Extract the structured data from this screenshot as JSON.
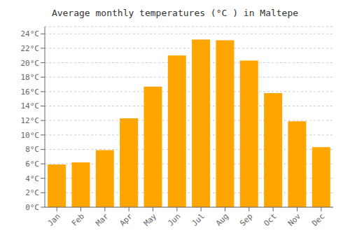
{
  "chart_data": {
    "type": "bar",
    "title": "Average monthly temperatures (°C ) in Maltepe",
    "categories": [
      "Jan",
      "Feb",
      "Mar",
      "Apr",
      "May",
      "Jun",
      "Jul",
      "Aug",
      "Sep",
      "Oct",
      "Nov",
      "Dec"
    ],
    "values": [
      5.9,
      6.2,
      7.9,
      12.3,
      16.7,
      21.0,
      23.2,
      23.1,
      20.3,
      15.8,
      11.9,
      8.3
    ],
    "color": "#FFA500",
    "ylim": [
      0,
      25
    ],
    "yticks": [
      {
        "value": 0,
        "label": "0°C"
      },
      {
        "value": 2,
        "label": "2°C"
      },
      {
        "value": 4,
        "label": "4°C"
      },
      {
        "value": 6,
        "label": "6°C"
      },
      {
        "value": 8,
        "label": "8°C"
      },
      {
        "value": 10,
        "label": "10°C"
      },
      {
        "value": 12,
        "label": "12°C"
      },
      {
        "value": 14,
        "label": "14°C"
      },
      {
        "value": 16,
        "label": "16°C"
      },
      {
        "value": 18,
        "label": "18°C"
      },
      {
        "value": 20,
        "label": "20°C"
      },
      {
        "value": 22,
        "label": "22°C"
      },
      {
        "value": 24,
        "label": "24°C"
      }
    ],
    "grid": true
  }
}
